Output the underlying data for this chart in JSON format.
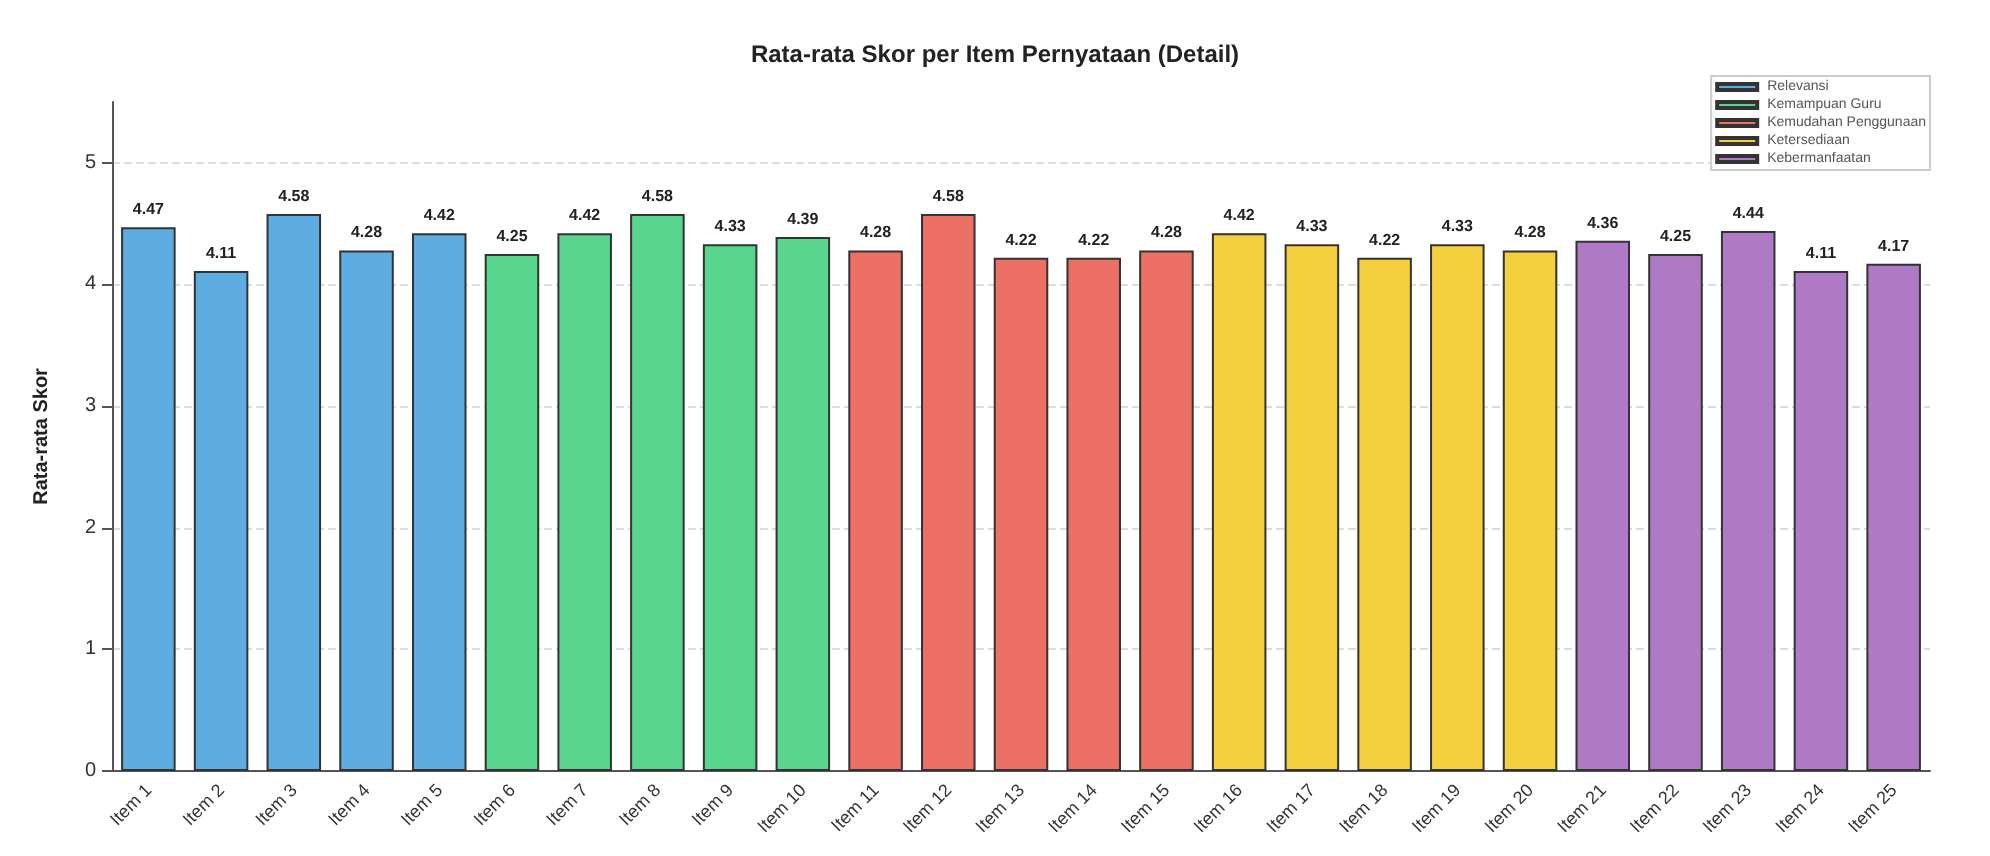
{
  "chart_data": {
    "type": "bar",
    "title": "Rata-rata Skor per Item Pernyataan (Detail)",
    "ylabel": "Rata-rata Skor",
    "categories": [
      "Item 1",
      "Item 2",
      "Item 3",
      "Item 4",
      "Item 5",
      "Item 6",
      "Item 7",
      "Item 8",
      "Item 9",
      "Item 10",
      "Item 11",
      "Item 12",
      "Item 13",
      "Item 14",
      "Item 15",
      "Item 16",
      "Item 17",
      "Item 18",
      "Item 19",
      "Item 20",
      "Item 21",
      "Item 22",
      "Item 23",
      "Item 24",
      "Item 25"
    ],
    "series": [
      {
        "name": "Relevansi",
        "color": "#5dade2",
        "values": [
          4.47,
          4.11,
          4.58,
          4.28,
          4.42,
          null,
          null,
          null,
          null,
          null,
          null,
          null,
          null,
          null,
          null,
          null,
          null,
          null,
          null,
          null,
          null,
          null,
          null,
          null,
          null
        ]
      },
      {
        "name": "Kemampuan Guru",
        "color": "#58d68d",
        "values": [
          null,
          null,
          null,
          null,
          null,
          4.25,
          4.42,
          4.58,
          4.33,
          4.39,
          null,
          null,
          null,
          null,
          null,
          null,
          null,
          null,
          null,
          null,
          null,
          null,
          null,
          null,
          null
        ]
      },
      {
        "name": "Kemudahan Penggunaan",
        "color": "#ec7063",
        "values": [
          null,
          null,
          null,
          null,
          null,
          null,
          null,
          null,
          null,
          null,
          4.28,
          4.58,
          4.22,
          4.22,
          4.28,
          null,
          null,
          null,
          null,
          null,
          null,
          null,
          null,
          null,
          null
        ]
      },
      {
        "name": "Ketersediaan",
        "color": "#f4d03f",
        "values": [
          null,
          null,
          null,
          null,
          null,
          null,
          null,
          null,
          null,
          null,
          null,
          null,
          null,
          null,
          null,
          4.42,
          4.33,
          4.22,
          4.33,
          4.28,
          null,
          null,
          null,
          null,
          null
        ]
      },
      {
        "name": "Kebermanfaatan",
        "color": "#af7ac5",
        "values": [
          null,
          null,
          null,
          null,
          null,
          null,
          null,
          null,
          null,
          null,
          null,
          null,
          null,
          null,
          null,
          null,
          null,
          null,
          null,
          null,
          4.36,
          4.25,
          4.44,
          4.11,
          4.17
        ]
      }
    ],
    "ylim": [
      0,
      5.5
    ],
    "yticks": [
      0,
      1,
      2,
      3,
      4,
      5
    ],
    "grid": "y",
    "legend": "top right",
    "data_labels": true
  }
}
